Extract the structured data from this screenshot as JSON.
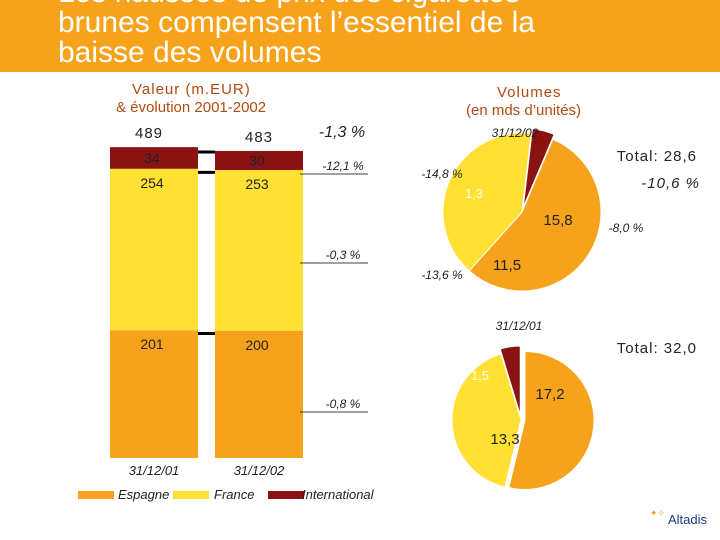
{
  "title": {
    "line1": "Les hausses de prix des cigarettes",
    "line2": "brunes compensent l’essentiel de la",
    "line3": "baisse des volumes"
  },
  "left_header": {
    "line1": "Valeur (m.EUR)",
    "line2": "& évolution 2001-2002"
  },
  "right_header": {
    "line1": "Volumes",
    "line2": "(en mds d’unités)"
  },
  "colors": {
    "espagne": "#f7a21b",
    "france": "#ffe033",
    "international": "#8a1212",
    "title_band": "#f7a21b"
  },
  "chart_data": [
    {
      "type": "bar",
      "title": "Valeur (m.EUR) & évolution 2001-2002",
      "categories": [
        "31/12/01",
        "31/12/02"
      ],
      "series": [
        {
          "name": "Espagne",
          "values": [
            201,
            200
          ],
          "change": "-0,8 %"
        },
        {
          "name": "France",
          "values": [
            254,
            253
          ],
          "change": "-0,3 %"
        },
        {
          "name": "International",
          "values": [
            34,
            30
          ],
          "change": "-12,1 %"
        }
      ],
      "totals": [
        489,
        483
      ],
      "total_change": "-1,3 %"
    },
    {
      "type": "pie",
      "title": "Volumes 31/12/02",
      "date": "31/12/02",
      "total_label": "Total: 28,6",
      "total_change": "-10,6 %",
      "slices": [
        {
          "name": "Espagne",
          "value": 15.8,
          "label": "15,8",
          "change": "-8,0 %"
        },
        {
          "name": "France",
          "value": 11.5,
          "label": "11,5",
          "change": "-13,6 %"
        },
        {
          "name": "International",
          "value": 1.3,
          "label": "1,3",
          "change": "-14,8 %"
        }
      ]
    },
    {
      "type": "pie",
      "title": "Volumes 31/12/01",
      "date": "31/12/01",
      "total_label": "Total: 32,0",
      "slices": [
        {
          "name": "Espagne",
          "value": 17.2,
          "label": "17,2"
        },
        {
          "name": "France",
          "value": 13.3,
          "label": "13,3"
        },
        {
          "name": "International",
          "value": 1.5,
          "label": "1,5"
        }
      ]
    }
  ],
  "legend": [
    "Espagne",
    "France",
    "International"
  ],
  "logo_text": "Altadis"
}
